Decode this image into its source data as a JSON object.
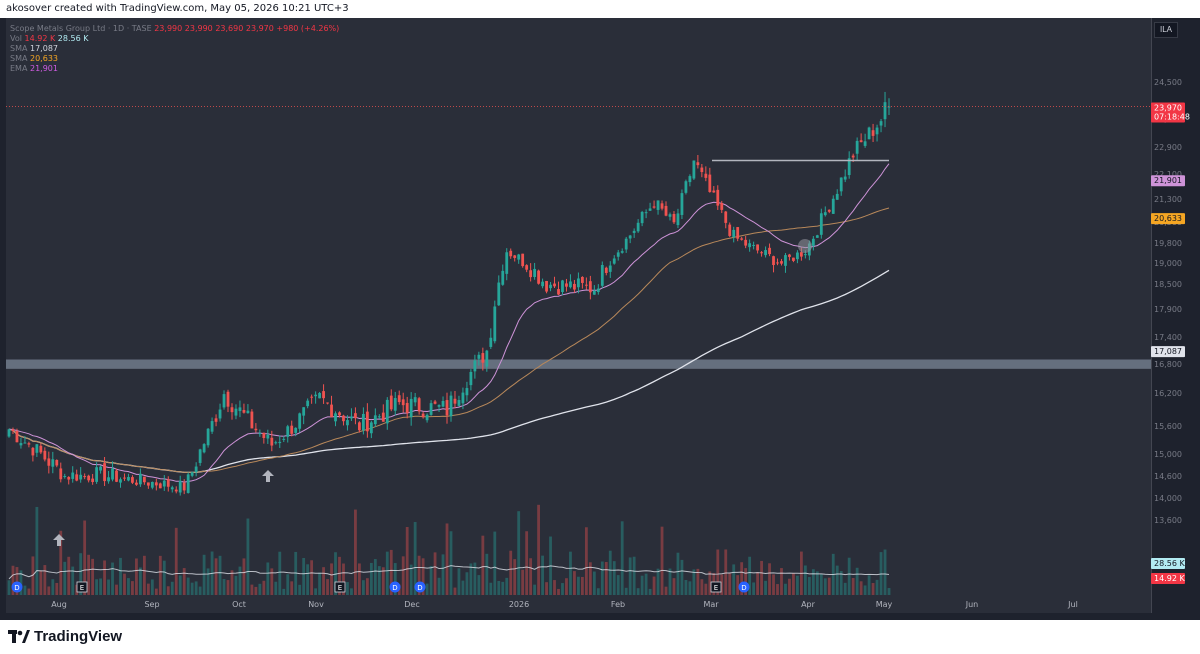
{
  "header": {
    "caption": "akosover created with TradingView.com, May 05, 2026 10:21 UTC+3"
  },
  "legend": {
    "symbol": "Scope Metals Group Ltd · 1D · TASE",
    "ohlc": [
      "23,990",
      "23,990",
      "23,690",
      "23,970",
      "+980 (+4.26%)"
    ],
    "vol": {
      "label": "Vol",
      "values": [
        "14.92 K",
        "28.56 K"
      ]
    },
    "sma": {
      "label": "SMA",
      "value": "17,087"
    },
    "sma2": {
      "label": "SMA",
      "value": "20,633"
    },
    "ema": {
      "label": "EMA",
      "value": "21,901"
    }
  },
  "currency": "ILA",
  "price_badges": {
    "last": "23,970",
    "countdown": "07:18:48",
    "ema": "21,901",
    "sma50": "20,633",
    "sma150": "17,087",
    "vol_avg": "28.56 K",
    "vol": "14.92 K"
  },
  "colors": {
    "up": "#26a69a",
    "down": "#ef5350",
    "ema": "#ce93d8",
    "sma50": "#b8885a",
    "sma150": "#e0e3eb",
    "zone": "#7a8595",
    "vol_avg": "#e0e3eb"
  },
  "event_markers": [
    "D",
    "E",
    "E",
    "D",
    "D",
    "E",
    "D"
  ],
  "brand": "TradingView",
  "chart_data": {
    "type": "candlestick",
    "title": "Scope Metals Group Ltd · 1D · TASE",
    "currency": "ILA",
    "y_ticks": [
      24500,
      23700,
      22900,
      22100,
      21300,
      20500,
      19800,
      19000,
      18500,
      17900,
      17400,
      16800,
      16200,
      15600,
      15000,
      14600,
      14000,
      13600
    ],
    "y_tick_labels": [
      "24,500",
      "23,700",
      "22,900",
      "22,100",
      "21,300",
      "20,500",
      "19,800",
      "19,000",
      "18,500",
      "17,900",
      "17,400",
      "16,800",
      "16,200",
      "15,600",
      "15,000",
      "14,600",
      "14,000",
      "13,600"
    ],
    "x_tick_labels": [
      "Aug",
      "Sep",
      "Oct",
      "Nov",
      "Dec",
      "2026",
      "Feb",
      "Mar",
      "Apr",
      "May",
      "Jun",
      "Jul"
    ],
    "support_zone": [
      16700,
      16900
    ],
    "resistance_line": 22500,
    "last_price": 23970,
    "segments": [
      {
        "bars": 15,
        "from": 15600,
        "to": 14600
      },
      {
        "bars": 10,
        "from": 14600,
        "to": 14600
      },
      {
        "bars": 20,
        "from": 14600,
        "to": 14300
      },
      {
        "bars": 10,
        "from": 14300,
        "to": 16200
      },
      {
        "bars": 12,
        "from": 16200,
        "to": 15200
      },
      {
        "bars": 12,
        "from": 15200,
        "to": 16100
      },
      {
        "bars": 10,
        "from": 16100,
        "to": 15600
      },
      {
        "bars": 10,
        "from": 15600,
        "to": 16000
      },
      {
        "bars": 12,
        "from": 16000,
        "to": 15900
      },
      {
        "bars": 10,
        "from": 15900,
        "to": 17100
      },
      {
        "bars": 5,
        "from": 17100,
        "to": 19500
      },
      {
        "bars": 10,
        "from": 19500,
        "to": 18500
      },
      {
        "bars": 12,
        "from": 18500,
        "to": 18400
      },
      {
        "bars": 15,
        "from": 18400,
        "to": 21200
      },
      {
        "bars": 5,
        "from": 21200,
        "to": 20400
      },
      {
        "bars": 5,
        "from": 20400,
        "to": 22500
      },
      {
        "bars": 10,
        "from": 22500,
        "to": 20000
      },
      {
        "bars": 12,
        "from": 20000,
        "to": 19000
      },
      {
        "bars": 6,
        "from": 19000,
        "to": 19500
      },
      {
        "bars": 12,
        "from": 19500,
        "to": 22700
      },
      {
        "bars": 9,
        "from": 22700,
        "to": 23970
      }
    ],
    "ema21_last": 21901,
    "sma50_last": 20633,
    "sma150_last": 17087,
    "volume_avg_last": 28560,
    "volume_last": 14920
  }
}
